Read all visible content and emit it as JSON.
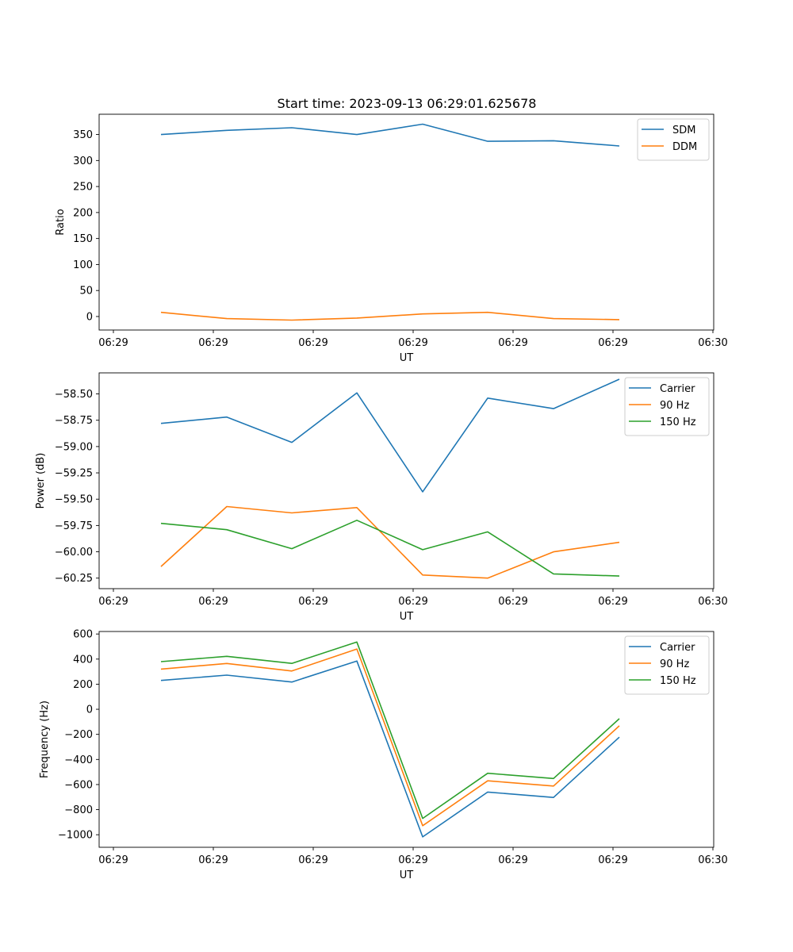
{
  "figure": {
    "title": "Start time: 2023-09-13 06:29:01.625678"
  },
  "chart_data": [
    {
      "type": "line",
      "id": "ratio",
      "title": "Start time: 2023-09-13 06:29:01.625678",
      "xlabel": "UT",
      "ylabel": "Ratio",
      "x_tick_labels": [
        "06:29",
        "06:29",
        "06:29",
        "06:29",
        "06:29",
        "06:29",
        "06:29"
      ],
      "x_tick_last": "06:30",
      "y_ticks": [
        0,
        50,
        100,
        150,
        200,
        250,
        300,
        350
      ],
      "y_tick_labels": [
        "0",
        "50",
        "100",
        "150",
        "200",
        "250",
        "300",
        "350"
      ],
      "ylim": [
        -26,
        389
      ],
      "legend_position": "upper right",
      "series": [
        {
          "name": "SDM",
          "color": "#1f77b4",
          "values": [
            350,
            358,
            363,
            350,
            370,
            337,
            338,
            328
          ]
        },
        {
          "name": "DDM",
          "color": "#ff7f0e",
          "values": [
            8,
            -4,
            -7,
            -3,
            5,
            8,
            -4,
            -6
          ]
        }
      ]
    },
    {
      "type": "line",
      "id": "power",
      "xlabel": "UT",
      "ylabel": "Power (dB)",
      "x_tick_labels": [
        "06:29",
        "06:29",
        "06:29",
        "06:29",
        "06:29",
        "06:29",
        "06:29"
      ],
      "x_tick_last": "06:30",
      "y_ticks": [
        -60.25,
        -60.0,
        -59.75,
        -59.5,
        -59.25,
        -59.0,
        -58.75,
        -58.5
      ],
      "y_tick_labels": [
        "−60.25",
        "−60.00",
        "−59.75",
        "−59.50",
        "−59.25",
        "−59.00",
        "−58.75",
        "−58.50"
      ],
      "ylim": [
        -60.35,
        -58.3
      ],
      "legend_position": "upper right",
      "series": [
        {
          "name": "Carrier",
          "color": "#1f77b4",
          "values": [
            -58.78,
            -58.72,
            -58.96,
            -58.49,
            -59.43,
            -58.54,
            -58.64,
            -58.36
          ]
        },
        {
          "name": "90 Hz",
          "color": "#ff7f0e",
          "values": [
            -60.14,
            -59.57,
            -59.63,
            -59.58,
            -60.22,
            -60.25,
            -60.0,
            -59.91
          ]
        },
        {
          "name": "150 Hz",
          "color": "#2ca02c",
          "values": [
            -59.73,
            -59.79,
            -59.97,
            -59.7,
            -59.98,
            -59.81,
            -60.21,
            -60.23
          ]
        }
      ]
    },
    {
      "type": "line",
      "id": "frequency",
      "xlabel": "UT",
      "ylabel": "Frequency (Hz)",
      "x_tick_labels": [
        "06:29",
        "06:29",
        "06:29",
        "06:29",
        "06:29",
        "06:29",
        "06:29"
      ],
      "x_tick_last": "06:30",
      "y_ticks": [
        -1000,
        -800,
        -600,
        -400,
        -200,
        0,
        200,
        400,
        600
      ],
      "y_tick_labels": [
        "−1000",
        "−800",
        "−600",
        "−400",
        "−200",
        "0",
        "200",
        "400",
        "600"
      ],
      "ylim": [
        -1100,
        620
      ],
      "legend_position": "upper right",
      "series": [
        {
          "name": "Carrier",
          "color": "#1f77b4",
          "values": [
            230,
            272,
            217,
            385,
            -1017,
            -660,
            -703,
            -222
          ]
        },
        {
          "name": "90 Hz",
          "color": "#ff7f0e",
          "values": [
            320,
            365,
            305,
            480,
            -928,
            -570,
            -612,
            -132
          ]
        },
        {
          "name": "150 Hz",
          "color": "#2ca02c",
          "values": [
            380,
            422,
            366,
            536,
            -870,
            -510,
            -552,
            -75
          ]
        }
      ]
    }
  ]
}
